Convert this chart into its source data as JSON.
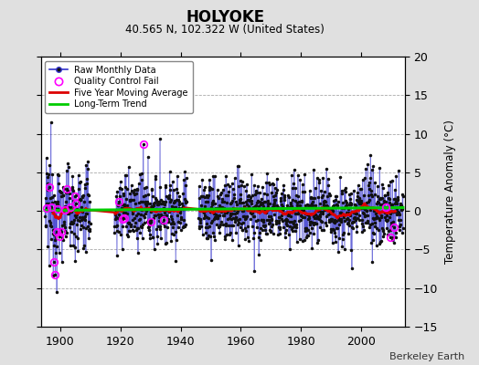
{
  "title": "HOLYOKE",
  "subtitle": "40.565 N, 102.322 W (United States)",
  "ylabel": "Temperature Anomaly (°C)",
  "attribution": "Berkeley Earth",
  "year_start": 1895,
  "year_end": 2013,
  "ylim": [
    -15,
    20
  ],
  "yticks": [
    -15,
    -10,
    -5,
    0,
    5,
    10,
    15,
    20
  ],
  "bg_color": "#e0e0e0",
  "plot_bg_color": "#ffffff",
  "raw_line_color": "#3333cc",
  "raw_dot_color": "#111111",
  "qc_fail_color": "#ff00ff",
  "moving_avg_color": "#dd0000",
  "trend_color": "#00cc00",
  "seed": 12345
}
